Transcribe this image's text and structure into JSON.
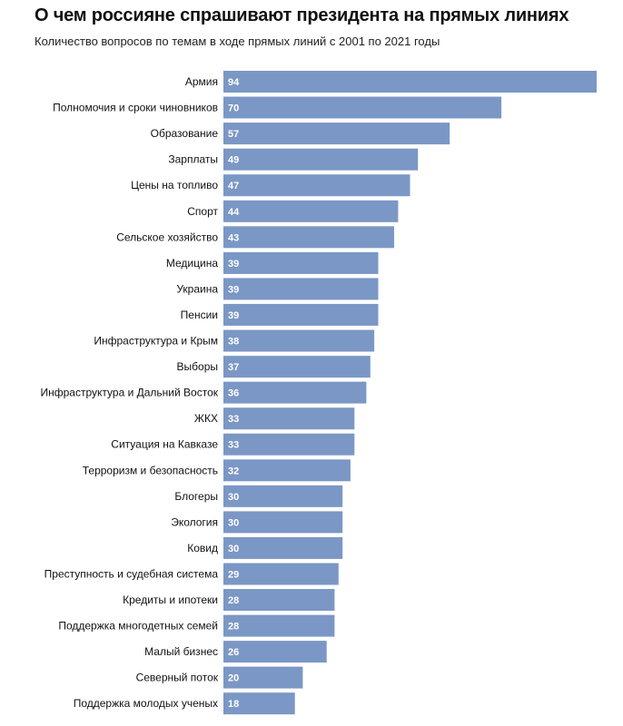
{
  "header": {
    "title": "О чем россияне спрашивают президента на прямых линиях",
    "subtitle": "Количество вопросов по темам в ходе прямых линий с 2001 по 2021 годы"
  },
  "colors": {
    "bar": "#7b97c5",
    "value_text": "#ffffff",
    "label_text": "#111111"
  },
  "chart_data": {
    "type": "bar",
    "orientation": "horizontal",
    "title": "О чем россияне спрашивают президента на прямых линиях",
    "subtitle": "Количество вопросов по темам в ходе прямых линий с 2001 по 2021 годы",
    "xlabel": "",
    "ylabel": "",
    "xlim": [
      0,
      94
    ],
    "grid": false,
    "categories": [
      "Армия",
      "Полномочия и сроки чиновников",
      "Образование",
      "Зарплаты",
      "Цены на топливо",
      "Спорт",
      "Сельское хозяйство",
      "Медицина",
      "Украина",
      "Пенсии",
      "Инфраструктура и Крым",
      "Выборы",
      "Инфраструктура и Дальний Восток",
      "ЖКХ",
      "Ситуация на Кавказе",
      "Терроризм и безопасность",
      "Блогеры",
      "Экология",
      "Ковид",
      "Преступность и судебная система",
      "Кредиты и ипотеки",
      "Поддержка многодетных семей",
      "Малый бизнес",
      "Северный поток",
      "Поддержка молодых ученых"
    ],
    "values": [
      94,
      70,
      57,
      49,
      47,
      44,
      43,
      39,
      39,
      39,
      38,
      37,
      36,
      33,
      33,
      32,
      30,
      30,
      30,
      29,
      28,
      28,
      26,
      20,
      18
    ]
  }
}
